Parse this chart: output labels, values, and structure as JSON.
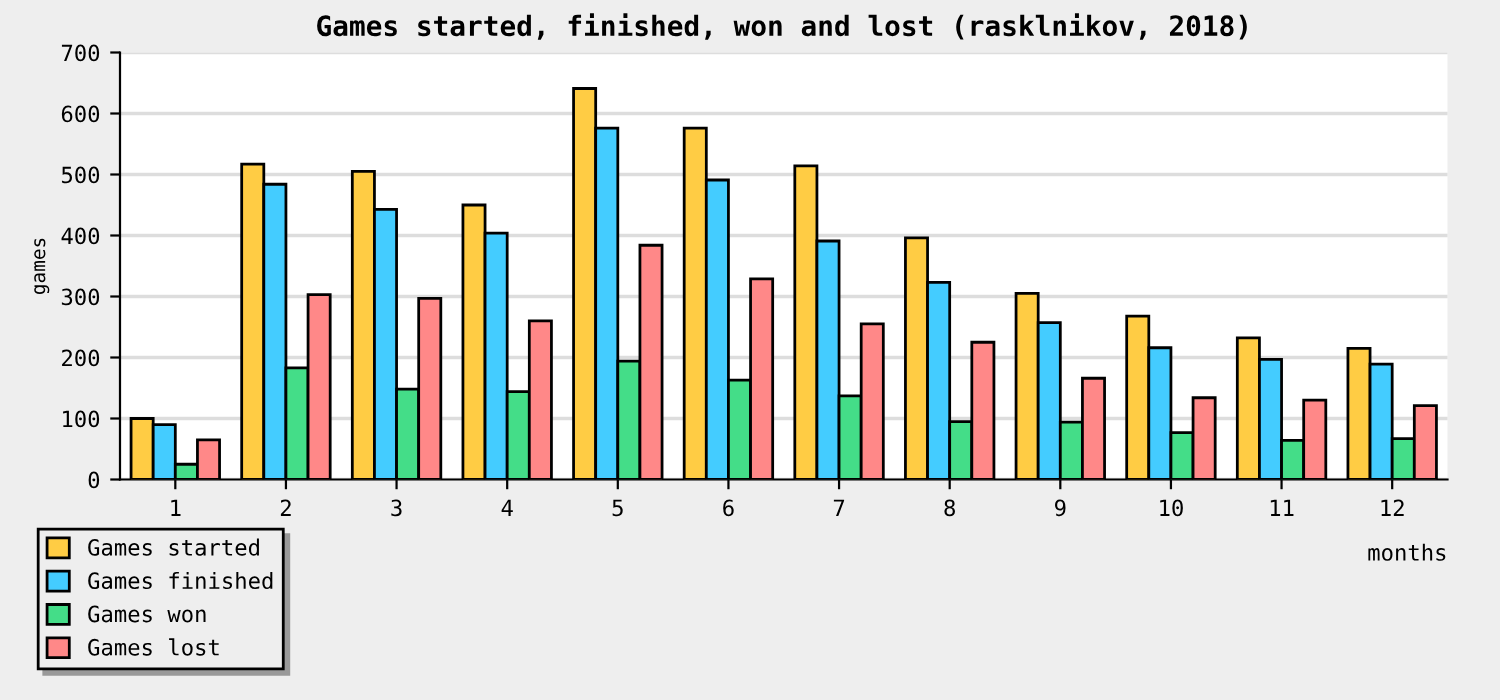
{
  "chart_data": {
    "type": "bar",
    "title": "Games started, finished, won and lost (rasklnikov, 2018)",
    "xlabel": "months",
    "ylabel": "games",
    "categories": [
      "1",
      "2",
      "3",
      "4",
      "5",
      "6",
      "7",
      "8",
      "9",
      "10",
      "11",
      "12"
    ],
    "series": [
      {
        "name": "Games started",
        "color": "#ffcc44",
        "values": [
          100,
          517,
          505,
          450,
          641,
          576,
          514,
          396,
          305,
          268,
          232,
          215
        ]
      },
      {
        "name": "Games finished",
        "color": "#44ccff",
        "values": [
          90,
          484,
          443,
          404,
          576,
          491,
          391,
          323,
          257,
          216,
          197,
          189
        ]
      },
      {
        "name": "Games won",
        "color": "#44dd88",
        "values": [
          25,
          183,
          148,
          144,
          194,
          163,
          137,
          95,
          94,
          77,
          64,
          67
        ]
      },
      {
        "name": "Games lost",
        "color": "#ff8888",
        "values": [
          65,
          303,
          297,
          260,
          384,
          329,
          255,
          225,
          166,
          134,
          130,
          121
        ]
      }
    ],
    "ylim": [
      0,
      700
    ],
    "yticks": [
      0,
      100,
      200,
      300,
      400,
      500,
      600,
      700
    ],
    "grid": "y",
    "legend": "bottom left"
  }
}
